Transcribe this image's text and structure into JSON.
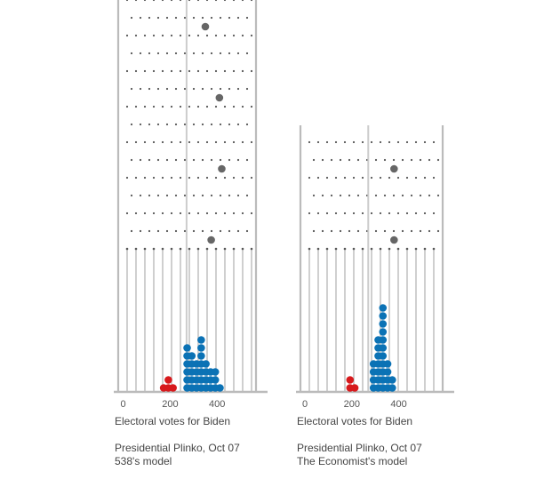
{
  "colors": {
    "trump": "#d7191c",
    "biden": "#0b72b5",
    "ball": "#666666",
    "peg": "#555555",
    "wall": "#bbbbbb",
    "threshold": "#cccccc"
  },
  "chart_data": [
    {
      "type": "dot histogram",
      "xlabel": "Electoral votes for Biden",
      "tick_labels": [
        "0",
        "200",
        "400"
      ],
      "tick_values": [
        0,
        200,
        400
      ],
      "xlim": [
        0,
        538
      ],
      "threshold": 270,
      "bins": [
        20,
        40,
        60,
        80,
        100,
        120,
        140,
        160,
        180,
        200,
        220,
        240,
        260,
        280,
        300,
        320,
        340,
        360,
        380,
        400,
        420,
        440,
        460,
        480,
        500,
        520
      ],
      "counts": [
        0,
        0,
        0,
        0,
        0,
        0,
        0,
        0,
        1,
        2,
        1,
        0,
        0,
        6,
        5,
        4,
        7,
        4,
        3,
        3,
        1,
        0,
        0,
        0,
        0,
        0
      ],
      "falling_balls_ev": [
        350,
        410,
        420,
        375
      ],
      "title": "Presidential Plinko, Oct 07",
      "subtitle": "538's model"
    },
    {
      "type": "dot histogram",
      "xlabel": "Electoral votes for Biden",
      "tick_labels": [
        "0",
        "200",
        "400"
      ],
      "tick_values": [
        0,
        200,
        400
      ],
      "xlim": [
        0,
        538
      ],
      "threshold": 270,
      "bins": [
        20,
        40,
        60,
        80,
        100,
        120,
        140,
        160,
        180,
        200,
        220,
        240,
        260,
        280,
        300,
        320,
        340,
        360,
        380,
        400,
        420,
        440,
        460,
        480,
        500,
        520
      ],
      "counts": [
        0,
        0,
        0,
        0,
        0,
        0,
        0,
        0,
        0,
        2,
        1,
        0,
        0,
        0,
        4,
        7,
        11,
        4,
        2,
        0,
        0,
        0,
        0,
        0,
        0,
        0
      ],
      "falling_balls_ev": [
        380,
        380
      ],
      "title": "Presidential Plinko, Oct 07",
      "subtitle": "The Economist's model"
    }
  ]
}
